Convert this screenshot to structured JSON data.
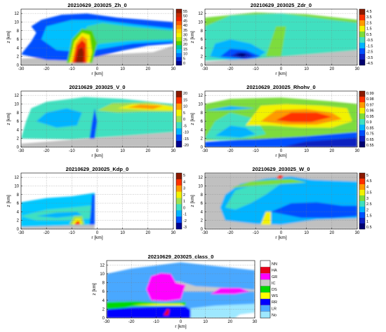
{
  "chart_data": [
    {
      "type": "heatmap",
      "title": "20210629_203025_Zh_0",
      "xlabel": "r [km]",
      "ylabel": "z [km]",
      "xlim": [
        -30,
        30
      ],
      "ylim": [
        0,
        13
      ],
      "xticks": [
        "-30",
        "-20",
        "-10",
        "0",
        "10",
        "20",
        "30"
      ],
      "yticks": [
        "0",
        "2",
        "4",
        "6",
        "8",
        "10",
        "12"
      ],
      "grid": true,
      "colorbar": {
        "ticks": [
          "55",
          "50",
          "45",
          "40",
          "35",
          "30",
          "25",
          "20",
          "15",
          "10",
          "5",
          "0"
        ],
        "colors": [
          "#8b1a00",
          "#c62a00",
          "#ee2000",
          "#ff5a00",
          "#ff9a00",
          "#ffcf00",
          "#f2f200",
          "#b4e600",
          "#55d100",
          "#00c8a0",
          "#00c0ff",
          "#0078ff",
          "#0028d8",
          "#00008c"
        ]
      }
    },
    {
      "type": "heatmap",
      "title": "20210629_203025_Zdr_0",
      "xlabel": "r [km]",
      "ylabel": "z [km]",
      "xlim": [
        -30,
        30
      ],
      "ylim": [
        0,
        13
      ],
      "xticks": [
        "-30",
        "-20",
        "-10",
        "0",
        "10",
        "20",
        "30"
      ],
      "yticks": [
        "0",
        "2",
        "4",
        "6",
        "8",
        "10",
        "12"
      ],
      "grid": true,
      "colorbar": {
        "ticks": [
          "4.5",
          "3.5",
          "2.5",
          "1.5",
          "0.5",
          "-0.5",
          "-1.5",
          "-2.5",
          "-3.5",
          "-4.5"
        ],
        "colors": [
          "#8b1a00",
          "#ff3000",
          "#ff9a00",
          "#f2f200",
          "#7ddc3c",
          "#40e0c0",
          "#00b4ff",
          "#0050ff",
          "#1020c0",
          "#000070"
        ]
      }
    },
    {
      "type": "heatmap",
      "title": "20210629_203025_V_0",
      "xlabel": "r [km]",
      "ylabel": "z [km]",
      "xlim": [
        -30,
        30
      ],
      "ylim": [
        0,
        13
      ],
      "xticks": [
        "-30",
        "-20",
        "-10",
        "0",
        "10",
        "20",
        "30"
      ],
      "yticks": [
        "0",
        "2",
        "4",
        "6",
        "8",
        "10",
        "12"
      ],
      "grid": true,
      "colorbar": {
        "ticks": [
          "20",
          "15",
          "10",
          "5",
          "0",
          "-5",
          "-10",
          "-15",
          "-20"
        ],
        "colors": [
          "#8b1a00",
          "#ff3000",
          "#ff9a00",
          "#f2f200",
          "#a0e050",
          "#40e0c0",
          "#00b4ff",
          "#0050ff",
          "#000090"
        ]
      }
    },
    {
      "type": "heatmap",
      "title": "20210629_203025_Rhohv_0",
      "xlabel": "r [km]",
      "ylabel": "z [km]",
      "xlim": [
        -30,
        30
      ],
      "ylim": [
        0,
        13
      ],
      "xticks": [
        "-30",
        "-20",
        "-10",
        "0",
        "10",
        "20",
        "30"
      ],
      "yticks": [
        "0",
        "2",
        "4",
        "6",
        "8",
        "10",
        "12"
      ],
      "grid": true,
      "colorbar": {
        "ticks": [
          "0.99",
          "0.98",
          "0.97",
          "0.96",
          "0.95",
          "0.9",
          "0.85",
          "0.75",
          "0.65",
          "0.55"
        ],
        "colors": [
          "#8b1a00",
          "#ff3000",
          "#ff9a00",
          "#f2f200",
          "#7ddc3c",
          "#40e0c0",
          "#00b4ff",
          "#0050ff",
          "#1020c0",
          "#000070"
        ]
      }
    },
    {
      "type": "heatmap",
      "title": "20210629_203025_Kdp_0",
      "xlabel": "r [km]",
      "ylabel": "z [km]",
      "xlim": [
        -30,
        30
      ],
      "ylim": [
        0,
        13
      ],
      "xticks": [
        "-30",
        "-20",
        "-10",
        "0",
        "10",
        "20",
        "30"
      ],
      "yticks": [
        "0",
        "2",
        "4",
        "6",
        "8",
        "10",
        "12"
      ],
      "grid": true,
      "colorbar": {
        "ticks": [
          "5",
          "4",
          "3",
          "2",
          "1",
          "0",
          "-1",
          "-2",
          "-3"
        ],
        "colors": [
          "#8b1a00",
          "#ff3000",
          "#ff9a00",
          "#f2f200",
          "#a0e050",
          "#40e0c0",
          "#00b4ff",
          "#0050ff",
          "#000090"
        ]
      }
    },
    {
      "type": "heatmap",
      "title": "20210629_203025_W_0",
      "xlabel": "r [km]",
      "ylabel": "z [km]",
      "xlim": [
        -30,
        30
      ],
      "ylim": [
        0,
        13
      ],
      "xticks": [
        "-30",
        "-20",
        "-10",
        "0",
        "10",
        "20",
        "30"
      ],
      "yticks": [
        "0",
        "2",
        "4",
        "6",
        "8",
        "10",
        "12"
      ],
      "grid": true,
      "colorbar": {
        "ticks": [
          "5",
          "4.5",
          "4",
          "3.5",
          "3",
          "2.5",
          "2",
          "1.5",
          "1",
          "0.5"
        ],
        "colors": [
          "#8b1a00",
          "#ff3000",
          "#ff9a00",
          "#f2f200",
          "#7ddc3c",
          "#40e0c0",
          "#00b4ff",
          "#0050ff",
          "#1020c0",
          "#000070"
        ]
      }
    },
    {
      "type": "heatmap",
      "title": "20210629_203025_class_0",
      "xlabel": "r [km]",
      "ylabel": "z [km]",
      "xlim": [
        -30,
        30
      ],
      "ylim": [
        0,
        13
      ],
      "xticks": [
        "-30",
        "-20",
        "-10",
        "0",
        "10",
        "20",
        "30"
      ],
      "yticks": [
        "0",
        "2",
        "4",
        "6",
        "8",
        "10",
        "12"
      ],
      "grid": true,
      "legend": [
        {
          "label": "NN",
          "color": "#ffffff"
        },
        {
          "label": "HA",
          "color": "#e8001a"
        },
        {
          "label": "GR",
          "color": "#ff00ff"
        },
        {
          "label": "IC",
          "color": "#c9c9c9"
        },
        {
          "label": "DS",
          "color": "#00d800"
        },
        {
          "label": "WS",
          "color": "#ffff00"
        },
        {
          "label": "RR",
          "color": "#0000ff"
        },
        {
          "label": "LR",
          "color": "#4aa8ff"
        },
        {
          "label": "No",
          "color": "#9ee8ff"
        }
      ]
    }
  ]
}
